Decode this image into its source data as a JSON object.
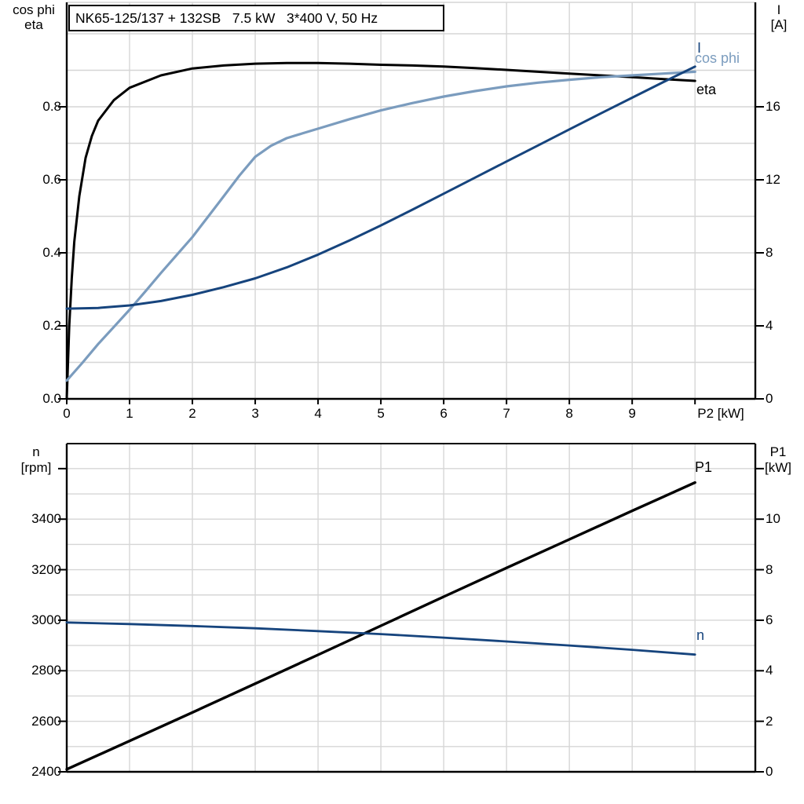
{
  "colors": {
    "black": "#000000",
    "dark_blue": "#16447d",
    "light_blue": "#7b9cbe",
    "grid": "#d6d6d6",
    "background": "#ffffff"
  },
  "chart_data": [
    {
      "id": "motor-electrical-curves",
      "type": "line",
      "title": "NK65-125/137 + 132SB   7.5 kW   3*400 V, 50 Hz",
      "x_axis_label": "P2 [kW]",
      "xlim": [
        0,
        10.96
      ],
      "x_ticks": [
        0,
        1,
        2,
        3,
        4,
        5,
        6,
        7,
        8,
        9,
        10
      ],
      "x_tick_labels": [
        "0",
        "1",
        "2",
        "3",
        "4",
        "5",
        "6",
        "7",
        "8",
        "9",
        ""
      ],
      "grid": true,
      "left_axis": {
        "title_lines": [
          "cos phi",
          "eta"
        ],
        "ylim": [
          0,
          1.086
        ],
        "ticks": [
          0,
          0.2,
          0.4,
          0.6,
          0.8
        ],
        "tick_labels": [
          "0.0",
          "0.2",
          "0.4",
          "0.6",
          "0.8"
        ],
        "grid_step": 0.1
      },
      "right_axis": {
        "title_lines": [
          "I",
          "[A]"
        ],
        "ylim": [
          0,
          21.72
        ],
        "ticks": [
          0,
          4,
          8,
          12,
          16
        ],
        "tick_labels": [
          "0",
          "4",
          "8",
          "12",
          "16"
        ]
      },
      "series": [
        {
          "name": "eta",
          "axis": "left",
          "color": "#000000",
          "width": 3,
          "points": [
            [
              0,
              0
            ],
            [
              0.04,
              0.2
            ],
            [
              0.08,
              0.33
            ],
            [
              0.12,
              0.43
            ],
            [
              0.2,
              0.555
            ],
            [
              0.3,
              0.66
            ],
            [
              0.4,
              0.72
            ],
            [
              0.5,
              0.762
            ],
            [
              0.75,
              0.818
            ],
            [
              1,
              0.852
            ],
            [
              1.5,
              0.886
            ],
            [
              2,
              0.905
            ],
            [
              2.5,
              0.913
            ],
            [
              3,
              0.918
            ],
            [
              3.5,
              0.92
            ],
            [
              4,
              0.92
            ],
            [
              4.5,
              0.918
            ],
            [
              5,
              0.915
            ],
            [
              5.5,
              0.913
            ],
            [
              6,
              0.91
            ],
            [
              6.5,
              0.906
            ],
            [
              7,
              0.901
            ],
            [
              7.5,
              0.896
            ],
            [
              8,
              0.891
            ],
            [
              8.5,
              0.886
            ],
            [
              9,
              0.881
            ],
            [
              9.5,
              0.876
            ],
            [
              10,
              0.871
            ]
          ]
        },
        {
          "name": "cos phi",
          "axis": "left",
          "color": "#7b9cbe",
          "width": 3.2,
          "points": [
            [
              0,
              0.05
            ],
            [
              0.25,
              0.099
            ],
            [
              0.5,
              0.15
            ],
            [
              0.75,
              0.197
            ],
            [
              1,
              0.244
            ],
            [
              1.25,
              0.294
            ],
            [
              1.5,
              0.345
            ],
            [
              1.75,
              0.394
            ],
            [
              2,
              0.443
            ],
            [
              2.25,
              0.499
            ],
            [
              2.5,
              0.555
            ],
            [
              2.75,
              0.612
            ],
            [
              3,
              0.663
            ],
            [
              3.25,
              0.693
            ],
            [
              3.5,
              0.714
            ],
            [
              3.75,
              0.727
            ],
            [
              4,
              0.74
            ],
            [
              4.5,
              0.766
            ],
            [
              5,
              0.79
            ],
            [
              5.5,
              0.81
            ],
            [
              6,
              0.828
            ],
            [
              6.5,
              0.843
            ],
            [
              7,
              0.856
            ],
            [
              7.5,
              0.866
            ],
            [
              8,
              0.874
            ],
            [
              8.5,
              0.881
            ],
            [
              9,
              0.886
            ],
            [
              9.5,
              0.891
            ],
            [
              10,
              0.896
            ]
          ]
        },
        {
          "name": "I",
          "axis": "right",
          "color": "#16447d",
          "width": 3,
          "points": [
            [
              0,
              4.94
            ],
            [
              0.5,
              4.98
            ],
            [
              1,
              5.12
            ],
            [
              1.5,
              5.36
            ],
            [
              2,
              5.7
            ],
            [
              2.5,
              6.12
            ],
            [
              3,
              6.6
            ],
            [
              3.5,
              7.2
            ],
            [
              4,
              7.9
            ],
            [
              4.5,
              8.68
            ],
            [
              5,
              9.5
            ],
            [
              5.5,
              10.36
            ],
            [
              6,
              11.24
            ],
            [
              6.5,
              12.12
            ],
            [
              7,
              13.0
            ],
            [
              7.5,
              13.88
            ],
            [
              8,
              14.76
            ],
            [
              8.5,
              15.64
            ],
            [
              9,
              16.5
            ],
            [
              9.5,
              17.36
            ],
            [
              10,
              18.2
            ]
          ]
        }
      ]
    },
    {
      "id": "speed-power-curves",
      "type": "line",
      "xlim": [
        0,
        10.96
      ],
      "x_ticks": [
        0,
        1,
        2,
        3,
        4,
        5,
        6,
        7,
        8,
        9,
        10
      ],
      "x_tick_labels": [
        "",
        "",
        "",
        "",
        "",
        "",
        "",
        "",
        "",
        "",
        ""
      ],
      "grid": true,
      "left_axis": {
        "title_lines": [
          "n",
          "[rpm]"
        ],
        "ylim": [
          2400,
          3699
        ],
        "ticks": [
          2400,
          2600,
          2800,
          3000,
          3200,
          3400
        ],
        "tick_labels": [
          "2400",
          "2600",
          "2800",
          "3000",
          "3200",
          "3400"
        ],
        "unlabeled_ticks": [
          3600
        ],
        "grid_step": 100
      },
      "right_axis": {
        "title_lines": [
          "P1",
          "[kW]"
        ],
        "ylim": [
          0,
          12.99
        ],
        "ticks": [
          0,
          2,
          4,
          6,
          8,
          10
        ],
        "tick_labels": [
          "0",
          "2",
          "4",
          "6",
          "8",
          "10"
        ],
        "unlabeled_ticks": [
          12
        ]
      },
      "series": [
        {
          "name": "P1",
          "axis": "right",
          "color": "#000000",
          "width": 3.4,
          "points": [
            [
              0,
              0.1
            ],
            [
              1,
              1.22
            ],
            [
              2,
              2.35
            ],
            [
              3,
              3.49
            ],
            [
              4,
              4.63
            ],
            [
              5,
              5.78
            ],
            [
              6,
              6.93
            ],
            [
              7,
              8.07
            ],
            [
              8,
              9.2
            ],
            [
              9,
              10.33
            ],
            [
              10,
              11.45
            ]
          ]
        },
        {
          "name": "n",
          "axis": "left",
          "color": "#16447d",
          "width": 2.8,
          "points": [
            [
              0,
              2991
            ],
            [
              1,
              2985
            ],
            [
              2,
              2977
            ],
            [
              3,
              2968
            ],
            [
              4,
              2957
            ],
            [
              5,
              2945
            ],
            [
              6,
              2931
            ],
            [
              7,
              2916
            ],
            [
              8,
              2900
            ],
            [
              9,
              2883
            ],
            [
              10,
              2864
            ]
          ]
        }
      ]
    }
  ]
}
